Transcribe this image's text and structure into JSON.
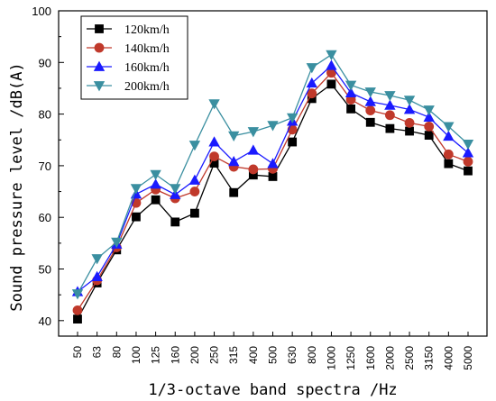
{
  "chart_data": {
    "type": "line",
    "title": "",
    "xlabel": "1/3-octave band spectra /Hz",
    "ylabel": "Sound pressure level /dB(A)",
    "ylim": [
      37,
      100
    ],
    "yticks": [
      40,
      50,
      60,
      70,
      80,
      90,
      100
    ],
    "categories": [
      "50",
      "63",
      "80",
      "100",
      "125",
      "160",
      "200",
      "250",
      "315",
      "400",
      "500",
      "630",
      "800",
      "1000",
      "1250",
      "1600",
      "2000",
      "2500",
      "3150",
      "4000",
      "5000"
    ],
    "legend_position": "top-left",
    "grid": false,
    "series": [
      {
        "name": "120km/h",
        "color": "#000000",
        "marker": "square",
        "values": [
          40.3,
          47.3,
          53.7,
          60.1,
          63.4,
          59.1,
          60.8,
          70.5,
          64.8,
          68.2,
          67.9,
          74.6,
          83.0,
          85.8,
          81.0,
          78.4,
          77.2,
          76.7,
          75.9,
          70.4,
          69.0
        ]
      },
      {
        "name": "140km/h",
        "color": "#c0392b",
        "marker": "circle",
        "values": [
          42.0,
          47.8,
          54.2,
          62.8,
          65.4,
          63.7,
          65.0,
          71.8,
          69.8,
          69.3,
          69.4,
          77.0,
          84.0,
          88.0,
          82.8,
          80.7,
          79.8,
          78.3,
          77.6,
          72.2,
          70.8
        ]
      },
      {
        "name": "160km/h",
        "color": "#1a1aff",
        "marker": "triangle-up",
        "values": [
          45.6,
          48.5,
          54.8,
          64.5,
          66.4,
          64.4,
          67.2,
          74.6,
          70.8,
          73.0,
          70.4,
          78.6,
          86.0,
          89.4,
          84.1,
          82.4,
          81.7,
          80.9,
          79.4,
          75.7,
          72.5
        ]
      },
      {
        "name": "200km/h",
        "color": "#3a8fa0",
        "marker": "triangle-down",
        "values": [
          45.2,
          52.0,
          55.2,
          65.6,
          68.3,
          65.6,
          74.0,
          82.0,
          75.8,
          76.6,
          77.8,
          79.3,
          89.0,
          91.5,
          85.6,
          84.3,
          83.6,
          82.7,
          80.8,
          77.6,
          74.2
        ]
      }
    ]
  }
}
